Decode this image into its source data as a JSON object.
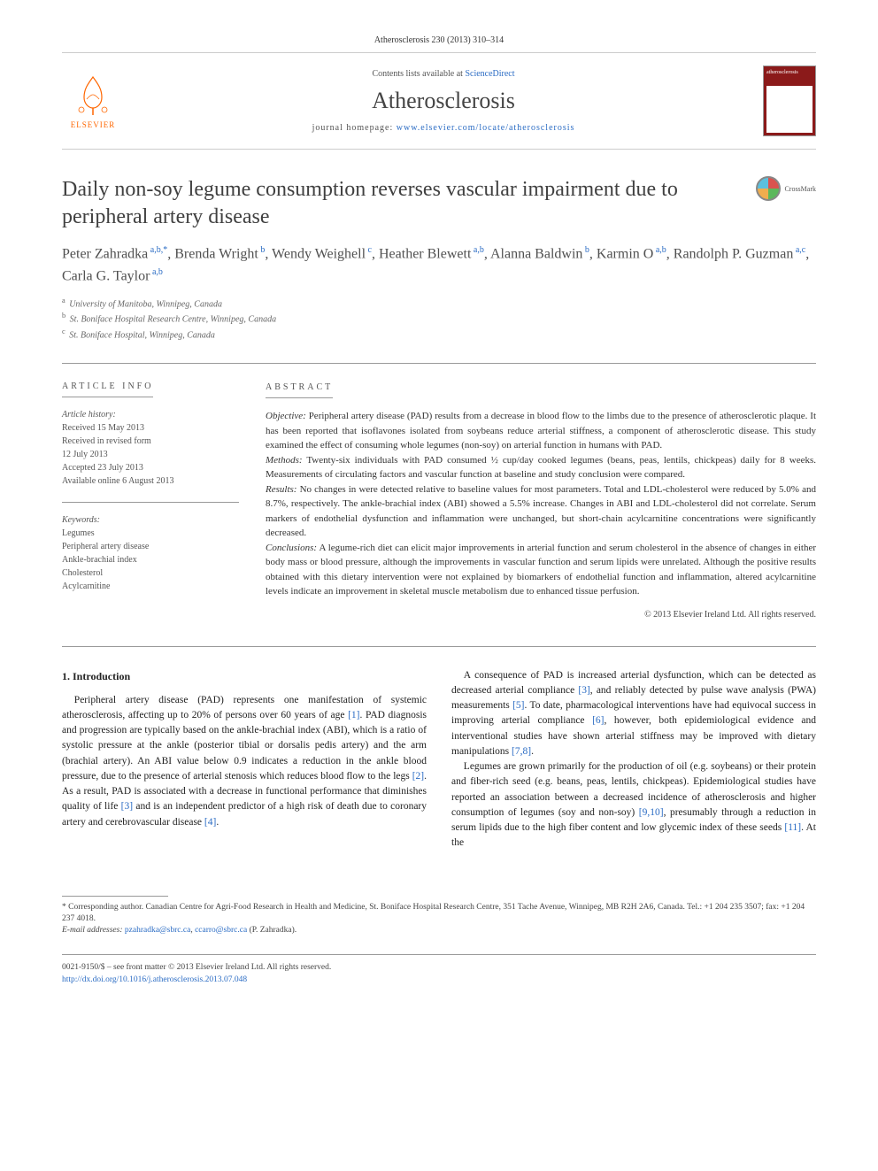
{
  "citation": "Atherosclerosis 230 (2013) 310–314",
  "header": {
    "publisher": "ELSEVIER",
    "contents_prefix": "Contents lists available at ",
    "contents_link": "ScienceDirect",
    "journal": "Atherosclerosis",
    "homepage_prefix": "journal homepage: ",
    "homepage_url": "www.elsevier.com/locate/atherosclerosis",
    "cover_label": "atherosclerosis"
  },
  "crossmark": "CrossMark",
  "title": "Daily non-soy legume consumption reverses vascular impairment due to peripheral artery disease",
  "authors_html": "Peter Zahradka<sup> a,b,*</sup>, Brenda Wright<sup> b</sup>, Wendy Weighell<sup> c</sup>, Heather Blewett<sup> a,b</sup>, Alanna Baldwin<sup> b</sup>, Karmin O<sup> a,b</sup>, Randolph P. Guzman<sup> a,c</sup>, Carla G. Taylor<sup> a,b</sup>",
  "affiliations": [
    {
      "sup": "a",
      "text": "University of Manitoba, Winnipeg, Canada"
    },
    {
      "sup": "b",
      "text": "St. Boniface Hospital Research Centre, Winnipeg, Canada"
    },
    {
      "sup": "c",
      "text": "St. Boniface Hospital, Winnipeg, Canada"
    }
  ],
  "info": {
    "heading": "ARTICLE INFO",
    "history_title": "Article history:",
    "history": [
      "Received 15 May 2013",
      "Received in revised form",
      "12 July 2013",
      "Accepted 23 July 2013",
      "Available online 6 August 2013"
    ],
    "keywords_title": "Keywords:",
    "keywords": [
      "Legumes",
      "Peripheral artery disease",
      "Ankle-brachial index",
      "Cholesterol",
      "Acylcarnitine"
    ]
  },
  "abstract": {
    "heading": "ABSTRACT",
    "objective_label": "Objective:",
    "objective": "Peripheral artery disease (PAD) results from a decrease in blood flow to the limbs due to the presence of atherosclerotic plaque. It has been reported that isoflavones isolated from soybeans reduce arterial stiffness, a component of atherosclerotic disease. This study examined the effect of consuming whole legumes (non-soy) on arterial function in humans with PAD.",
    "methods_label": "Methods:",
    "methods": "Twenty-six individuals with PAD consumed ½ cup/day cooked legumes (beans, peas, lentils, chickpeas) daily for 8 weeks. Measurements of circulating factors and vascular function at baseline and study conclusion were compared.",
    "results_label": "Results:",
    "results": "No changes in were detected relative to baseline values for most parameters. Total and LDL-cholesterol were reduced by 5.0% and 8.7%, respectively. The ankle-brachial index (ABI) showed a 5.5% increase. Changes in ABI and LDL-cholesterol did not correlate. Serum markers of endothelial dysfunction and inflammation were unchanged, but short-chain acylcarnitine concentrations were significantly decreased.",
    "conclusions_label": "Conclusions:",
    "conclusions": "A legume-rich diet can elicit major improvements in arterial function and serum cholesterol in the absence of changes in either body mass or blood pressure, although the improvements in vascular function and serum lipids were unrelated. Although the positive results obtained with this dietary intervention were not explained by biomarkers of endothelial function and inflammation, altered acylcarnitine levels indicate an improvement in skeletal muscle metabolism due to enhanced tissue perfusion.",
    "copyright": "© 2013 Elsevier Ireland Ltd. All rights reserved."
  },
  "body": {
    "section_heading": "1. Introduction",
    "p1a": "Peripheral artery disease (PAD) represents one manifestation of systemic atherosclerosis, affecting up to 20% of persons over 60 years of age ",
    "ref1": "[1]",
    "p1b": ". PAD diagnosis and progression are typically based on the ankle-brachial index (ABI), which is a ratio of systolic pressure at the ankle (posterior tibial or dorsalis pedis artery) and the arm (brachial artery). An ABI value below 0.9 indicates a reduction in the ankle blood pressure, due to the presence of arterial stenosis which reduces blood flow to the legs ",
    "ref2": "[2]",
    "p1c": ". As a result, PAD is associated with a decrease in functional performance ",
    "p1d": "that diminishes quality of life ",
    "ref3": "[3]",
    "p1e": " and is an independent predictor of a high risk of death due to coronary artery and cerebrovascular disease ",
    "ref4": "[4]",
    "p1f": ".",
    "p2a": "A consequence of PAD is increased arterial dysfunction, which can be detected as decreased arterial compliance ",
    "ref3b": "[3]",
    "p2b": ", and reliably detected by pulse wave analysis (PWA) measurements ",
    "ref5": "[5]",
    "p2c": ". To date, pharmacological interventions have had equivocal success in improving arterial compliance ",
    "ref6": "[6]",
    "p2d": ", however, both epidemiological evidence and interventional studies have shown arterial stiffness may be improved with dietary manipulations ",
    "ref78": "[7,8]",
    "p2e": ".",
    "p3a": "Legumes are grown primarily for the production of oil (e.g. soybeans) or their protein and fiber-rich seed (e.g. beans, peas, lentils, chickpeas). Epidemiological studies have reported an association between a decreased incidence of atherosclerosis and higher consumption of legumes (soy and non-soy) ",
    "ref910": "[9,10]",
    "p3b": ", presumably through a reduction in serum lipids due to the high fiber content and low glycemic index of these seeds ",
    "ref11": "[11]",
    "p3c": ". At the"
  },
  "footnote": {
    "corr_label": "* ",
    "corr_text": "Corresponding author. Canadian Centre for Agri-Food Research in Health and Medicine, St. Boniface Hospital Research Centre, 351 Tache Avenue, Winnipeg, MB R2H 2A6, Canada. Tel.: +1 204 235 3507; fax: +1 204 237 4018.",
    "email_label": "E-mail addresses: ",
    "email1": "pzahradka@sbrc.ca",
    "email_sep": ", ",
    "email2": "ccarro@sbrc.ca",
    "email_tail": " (P. Zahradka)."
  },
  "footer": {
    "line1": "0021-9150/$ – see front matter © 2013 Elsevier Ireland Ltd. All rights reserved.",
    "doi": "http://dx.doi.org/10.1016/j.atherosclerosis.2013.07.048"
  },
  "colors": {
    "link": "#2b6cc4",
    "elsevier_orange": "#ff6600",
    "cover_red": "#8b1a1a",
    "rule": "#999999"
  }
}
